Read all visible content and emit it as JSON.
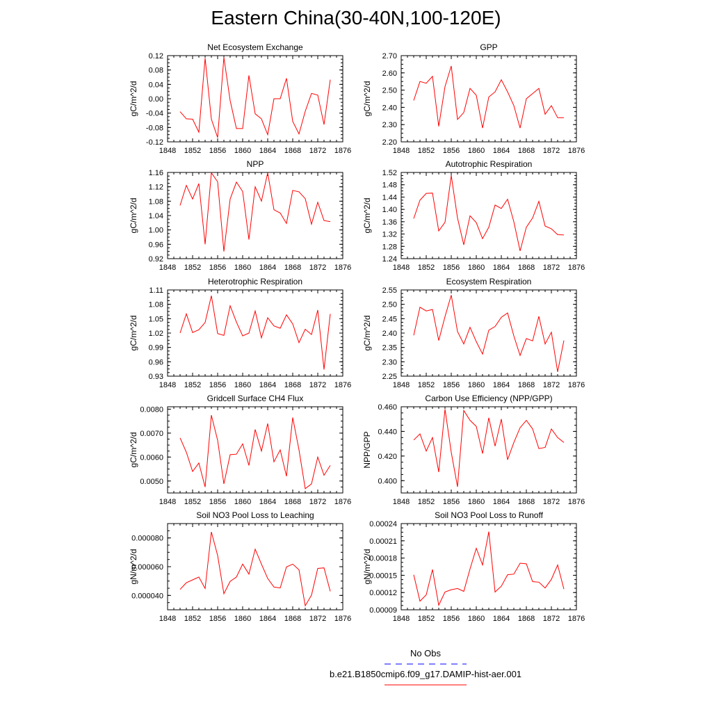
{
  "figure": {
    "title": "Eastern China(30-40N,100-120E)",
    "line_color": "#ff0000",
    "obs_color": "#0000ff"
  },
  "legend": {
    "obs_label": "No Obs",
    "model_label": "b.e21.B1850cmip6.f09_g17.DAMIP-hist-aer.001"
  },
  "chart_data": [
    {
      "type": "line",
      "title": "Net Ecosystem Exchange",
      "ylabel": "gC/m^2/d",
      "xlim": [
        1848,
        1876
      ],
      "xticks": [
        "1848",
        "1852",
        "1856",
        "1860",
        "1864",
        "1868",
        "1872",
        "1876"
      ],
      "ylim": [
        -0.12,
        0.12
      ],
      "yticks": [
        "-0.12",
        "-0.08",
        "-0.04",
        "0.00",
        "0.04",
        "0.08",
        "0.12"
      ],
      "x": [
        1850,
        1851,
        1852,
        1853,
        1854,
        1855,
        1856,
        1857,
        1858,
        1859,
        1860,
        1861,
        1862,
        1863,
        1864,
        1865,
        1866,
        1867,
        1868,
        1869,
        1870,
        1871,
        1872,
        1873,
        1874
      ],
      "series": [
        {
          "values": [
            -0.036,
            -0.056,
            -0.057,
            -0.093,
            0.113,
            -0.057,
            -0.108,
            0.115,
            -0.005,
            -0.083,
            -0.083,
            0.065,
            -0.042,
            -0.056,
            -0.1,
            0.0,
            0.0,
            0.057,
            -0.063,
            -0.098,
            -0.035,
            0.015,
            0.01,
            -0.072,
            0.053
          ]
        }
      ]
    },
    {
      "type": "line",
      "title": "GPP",
      "ylabel": "gC/m^2/d",
      "xlim": [
        1848,
        1876
      ],
      "xticks": [
        "1848",
        "1852",
        "1856",
        "1860",
        "1864",
        "1868",
        "1872",
        "1876"
      ],
      "ylim": [
        2.2,
        2.7
      ],
      "yticks": [
        "2.20",
        "2.30",
        "2.40",
        "2.50",
        "2.60",
        "2.70"
      ],
      "x": [
        1850,
        1851,
        1852,
        1853,
        1854,
        1855,
        1856,
        1857,
        1858,
        1859,
        1860,
        1861,
        1862,
        1863,
        1864,
        1865,
        1866,
        1867,
        1868,
        1869,
        1870,
        1871,
        1872,
        1873,
        1874
      ],
      "series": [
        {
          "values": [
            2.44,
            2.55,
            2.54,
            2.58,
            2.29,
            2.52,
            2.64,
            2.33,
            2.37,
            2.51,
            2.47,
            2.28,
            2.46,
            2.49,
            2.56,
            2.49,
            2.41,
            2.28,
            2.45,
            2.48,
            2.51,
            2.36,
            2.41,
            2.34,
            2.34
          ]
        }
      ]
    },
    {
      "type": "line",
      "title": "NPP",
      "ylabel": "gC/m^2/d",
      "xlim": [
        1848,
        1876
      ],
      "xticks": [
        "1848",
        "1852",
        "1856",
        "1860",
        "1864",
        "1868",
        "1872",
        "1876"
      ],
      "ylim": [
        0.92,
        1.16
      ],
      "yticks": [
        "0.92",
        "0.96",
        "1.00",
        "1.04",
        "1.08",
        "1.12",
        "1.16"
      ],
      "x": [
        1850,
        1851,
        1852,
        1853,
        1854,
        1855,
        1856,
        1857,
        1858,
        1859,
        1860,
        1861,
        1862,
        1863,
        1864,
        1865,
        1866,
        1867,
        1868,
        1869,
        1870,
        1871,
        1872,
        1873,
        1874
      ],
      "series": [
        {
          "values": [
            1.068,
            1.124,
            1.086,
            1.129,
            0.96,
            1.159,
            1.134,
            0.94,
            1.086,
            1.133,
            1.107,
            0.973,
            1.12,
            1.08,
            1.159,
            1.056,
            1.047,
            1.018,
            1.11,
            1.106,
            1.087,
            1.016,
            1.077,
            1.026,
            1.023
          ]
        }
      ]
    },
    {
      "type": "line",
      "title": "Autotrophic Respiration",
      "ylabel": "gC/m^2/d",
      "xlim": [
        1848,
        1876
      ],
      "xticks": [
        "1848",
        "1852",
        "1856",
        "1860",
        "1864",
        "1868",
        "1872",
        "1876"
      ],
      "ylim": [
        1.24,
        1.52
      ],
      "yticks": [
        "1.24",
        "1.28",
        "1.32",
        "1.36",
        "1.40",
        "1.44",
        "1.48",
        "1.52"
      ],
      "x": [
        1850,
        1851,
        1852,
        1853,
        1854,
        1855,
        1856,
        1857,
        1858,
        1859,
        1860,
        1861,
        1862,
        1863,
        1864,
        1865,
        1866,
        1867,
        1868,
        1869,
        1870,
        1871,
        1872,
        1873,
        1874
      ],
      "series": [
        {
          "values": [
            1.37,
            1.43,
            1.452,
            1.453,
            1.33,
            1.358,
            1.51,
            1.372,
            1.285,
            1.379,
            1.357,
            1.305,
            1.342,
            1.414,
            1.403,
            1.433,
            1.36,
            1.265,
            1.342,
            1.372,
            1.426,
            1.346,
            1.337,
            1.318,
            1.317
          ]
        }
      ]
    },
    {
      "type": "line",
      "title": "Heterotrophic Respiration",
      "ylabel": "gC/m^2/d",
      "xlim": [
        1848,
        1876
      ],
      "xticks": [
        "1848",
        "1852",
        "1856",
        "1860",
        "1864",
        "1868",
        "1872",
        "1876"
      ],
      "ylim": [
        0.93,
        1.11
      ],
      "yticks": [
        "0.93",
        "0.96",
        "0.99",
        "1.02",
        "1.05",
        "1.08",
        "1.11"
      ],
      "x": [
        1850,
        1851,
        1852,
        1853,
        1854,
        1855,
        1856,
        1857,
        1858,
        1859,
        1860,
        1861,
        1862,
        1863,
        1864,
        1865,
        1866,
        1867,
        1868,
        1869,
        1870,
        1871,
        1872,
        1873,
        1874
      ],
      "series": [
        {
          "values": [
            1.02,
            1.06,
            1.021,
            1.027,
            1.042,
            1.098,
            1.019,
            1.015,
            1.077,
            1.043,
            1.014,
            1.02,
            1.066,
            1.01,
            1.052,
            1.035,
            1.03,
            1.058,
            1.039,
            1.0,
            1.028,
            1.017,
            1.068,
            0.944,
            1.06
          ]
        }
      ]
    },
    {
      "type": "line",
      "title": "Ecosystem Respiration",
      "ylabel": "gC/m^2/d",
      "xlim": [
        1848,
        1876
      ],
      "xticks": [
        "1848",
        "1852",
        "1856",
        "1860",
        "1864",
        "1868",
        "1872",
        "1876"
      ],
      "ylim": [
        2.25,
        2.55
      ],
      "yticks": [
        "2.25",
        "2.30",
        "2.35",
        "2.40",
        "2.45",
        "2.50",
        "2.55"
      ],
      "x": [
        1850,
        1851,
        1852,
        1853,
        1854,
        1855,
        1856,
        1857,
        1858,
        1859,
        1860,
        1861,
        1862,
        1863,
        1864,
        1865,
        1866,
        1867,
        1868,
        1869,
        1870,
        1871,
        1872,
        1873,
        1874
      ],
      "series": [
        {
          "values": [
            2.392,
            2.49,
            2.477,
            2.482,
            2.374,
            2.457,
            2.532,
            2.405,
            2.362,
            2.42,
            2.37,
            2.327,
            2.41,
            2.423,
            2.455,
            2.47,
            2.39,
            2.322,
            2.381,
            2.373,
            2.458,
            2.362,
            2.403,
            2.265,
            2.374
          ]
        }
      ]
    },
    {
      "type": "line",
      "title": "Gridcell Surface CH4 Flux",
      "ylabel": "gC/m^2/d",
      "xlim": [
        1848,
        1876
      ],
      "xticks": [
        "1848",
        "1852",
        "1856",
        "1860",
        "1864",
        "1868",
        "1872",
        "1876"
      ],
      "ylim": [
        0.0045,
        0.0081
      ],
      "yticks": [
        "0.0050",
        "0.0060",
        "0.0070",
        "0.0080"
      ],
      "x": [
        1850,
        1851,
        1852,
        1853,
        1854,
        1855,
        1856,
        1857,
        1858,
        1859,
        1860,
        1861,
        1862,
        1863,
        1864,
        1865,
        1866,
        1867,
        1868,
        1869,
        1870,
        1871,
        1872,
        1873,
        1874
      ],
      "series": [
        {
          "values": [
            0.0068,
            0.0062,
            0.0054,
            0.00575,
            0.00475,
            0.00775,
            0.0067,
            0.00488,
            0.0061,
            0.00612,
            0.00655,
            0.00565,
            0.00715,
            0.00625,
            0.0074,
            0.0058,
            0.0063,
            0.0052,
            0.00765,
            0.0063,
            0.00468,
            0.00488,
            0.006,
            0.00524,
            0.00565
          ]
        }
      ]
    },
    {
      "type": "line",
      "title": "Carbon Use Efficiency (NPP/GPP)",
      "ylabel": "NPP/GPP",
      "xlim": [
        1848,
        1876
      ],
      "xticks": [
        "1848",
        "1852",
        "1856",
        "1860",
        "1864",
        "1868",
        "1872",
        "1876"
      ],
      "ylim": [
        0.39,
        0.46
      ],
      "yticks": [
        "0.400",
        "0.420",
        "0.440",
        "0.460"
      ],
      "x": [
        1850,
        1851,
        1852,
        1853,
        1854,
        1855,
        1856,
        1857,
        1858,
        1859,
        1860,
        1861,
        1862,
        1863,
        1864,
        1865,
        1866,
        1867,
        1868,
        1869,
        1870,
        1871,
        1872,
        1873,
        1874
      ],
      "series": [
        {
          "values": [
            0.433,
            0.438,
            0.424,
            0.435,
            0.407,
            0.458,
            0.423,
            0.395,
            0.457,
            0.449,
            0.444,
            0.422,
            0.451,
            0.428,
            0.45,
            0.417,
            0.431,
            0.443,
            0.449,
            0.442,
            0.426,
            0.427,
            0.442,
            0.435,
            0.431
          ]
        }
      ]
    },
    {
      "type": "line",
      "title": "Soil NO3 Pool Loss to Leaching",
      "ylabel": "gN/m^2/d",
      "xlim": [
        1848,
        1876
      ],
      "xticks": [
        "1848",
        "1852",
        "1856",
        "1860",
        "1864",
        "1868",
        "1872",
        "1876"
      ],
      "ylim": [
        3e-05,
        9e-05
      ],
      "yticks": [
        "0.000040",
        "0.000060",
        "0.000080"
      ],
      "x": [
        1850,
        1851,
        1852,
        1853,
        1854,
        1855,
        1856,
        1857,
        1858,
        1859,
        1860,
        1861,
        1862,
        1863,
        1864,
        1865,
        1866,
        1867,
        1868,
        1869,
        1870,
        1871,
        1872,
        1873,
        1874
      ],
      "series": [
        {
          "values": [
            4.42e-05,
            4.88e-05,
            5.08e-05,
            5.28e-05,
            4.48e-05,
            8.42e-05,
            6.78e-05,
            4.12e-05,
            4.98e-05,
            5.28e-05,
            6.18e-05,
            5.48e-05,
            7.22e-05,
            6.18e-05,
            5.18e-05,
            4.58e-05,
            4.52e-05,
            5.98e-05,
            6.18e-05,
            5.78e-05,
            3.28e-05,
            4.02e-05,
            5.88e-05,
            5.92e-05,
            4.28e-05
          ]
        }
      ]
    },
    {
      "type": "line",
      "title": "Soil NO3 Pool Loss to Runoff",
      "ylabel": "gN/m^2/d",
      "xlim": [
        1848,
        1876
      ],
      "xticks": [
        "1848",
        "1852",
        "1856",
        "1860",
        "1864",
        "1868",
        "1872",
        "1876"
      ],
      "ylim": [
        9e-05,
        0.00024
      ],
      "yticks": [
        "0.00009",
        "0.00012",
        "0.00015",
        "0.00018",
        "0.00021",
        "0.00024"
      ],
      "x": [
        1850,
        1851,
        1852,
        1853,
        1854,
        1855,
        1856,
        1857,
        1858,
        1859,
        1860,
        1861,
        1862,
        1863,
        1864,
        1865,
        1866,
        1867,
        1868,
        1869,
        1870,
        1871,
        1872,
        1873,
        1874
      ],
      "series": [
        {
          "values": [
            0.000151,
            0.000105,
            0.000116,
            0.00016,
            9.8e-05,
            0.000121,
            0.000125,
            0.000127,
            0.000122,
            0.000161,
            0.000197,
            0.000168,
            0.000226,
            0.000121,
            0.000131,
            0.000151,
            0.000152,
            0.000171,
            0.00017,
            0.000139,
            0.000138,
            0.000128,
            0.000143,
            0.000168,
            0.000126
          ]
        }
      ]
    }
  ]
}
